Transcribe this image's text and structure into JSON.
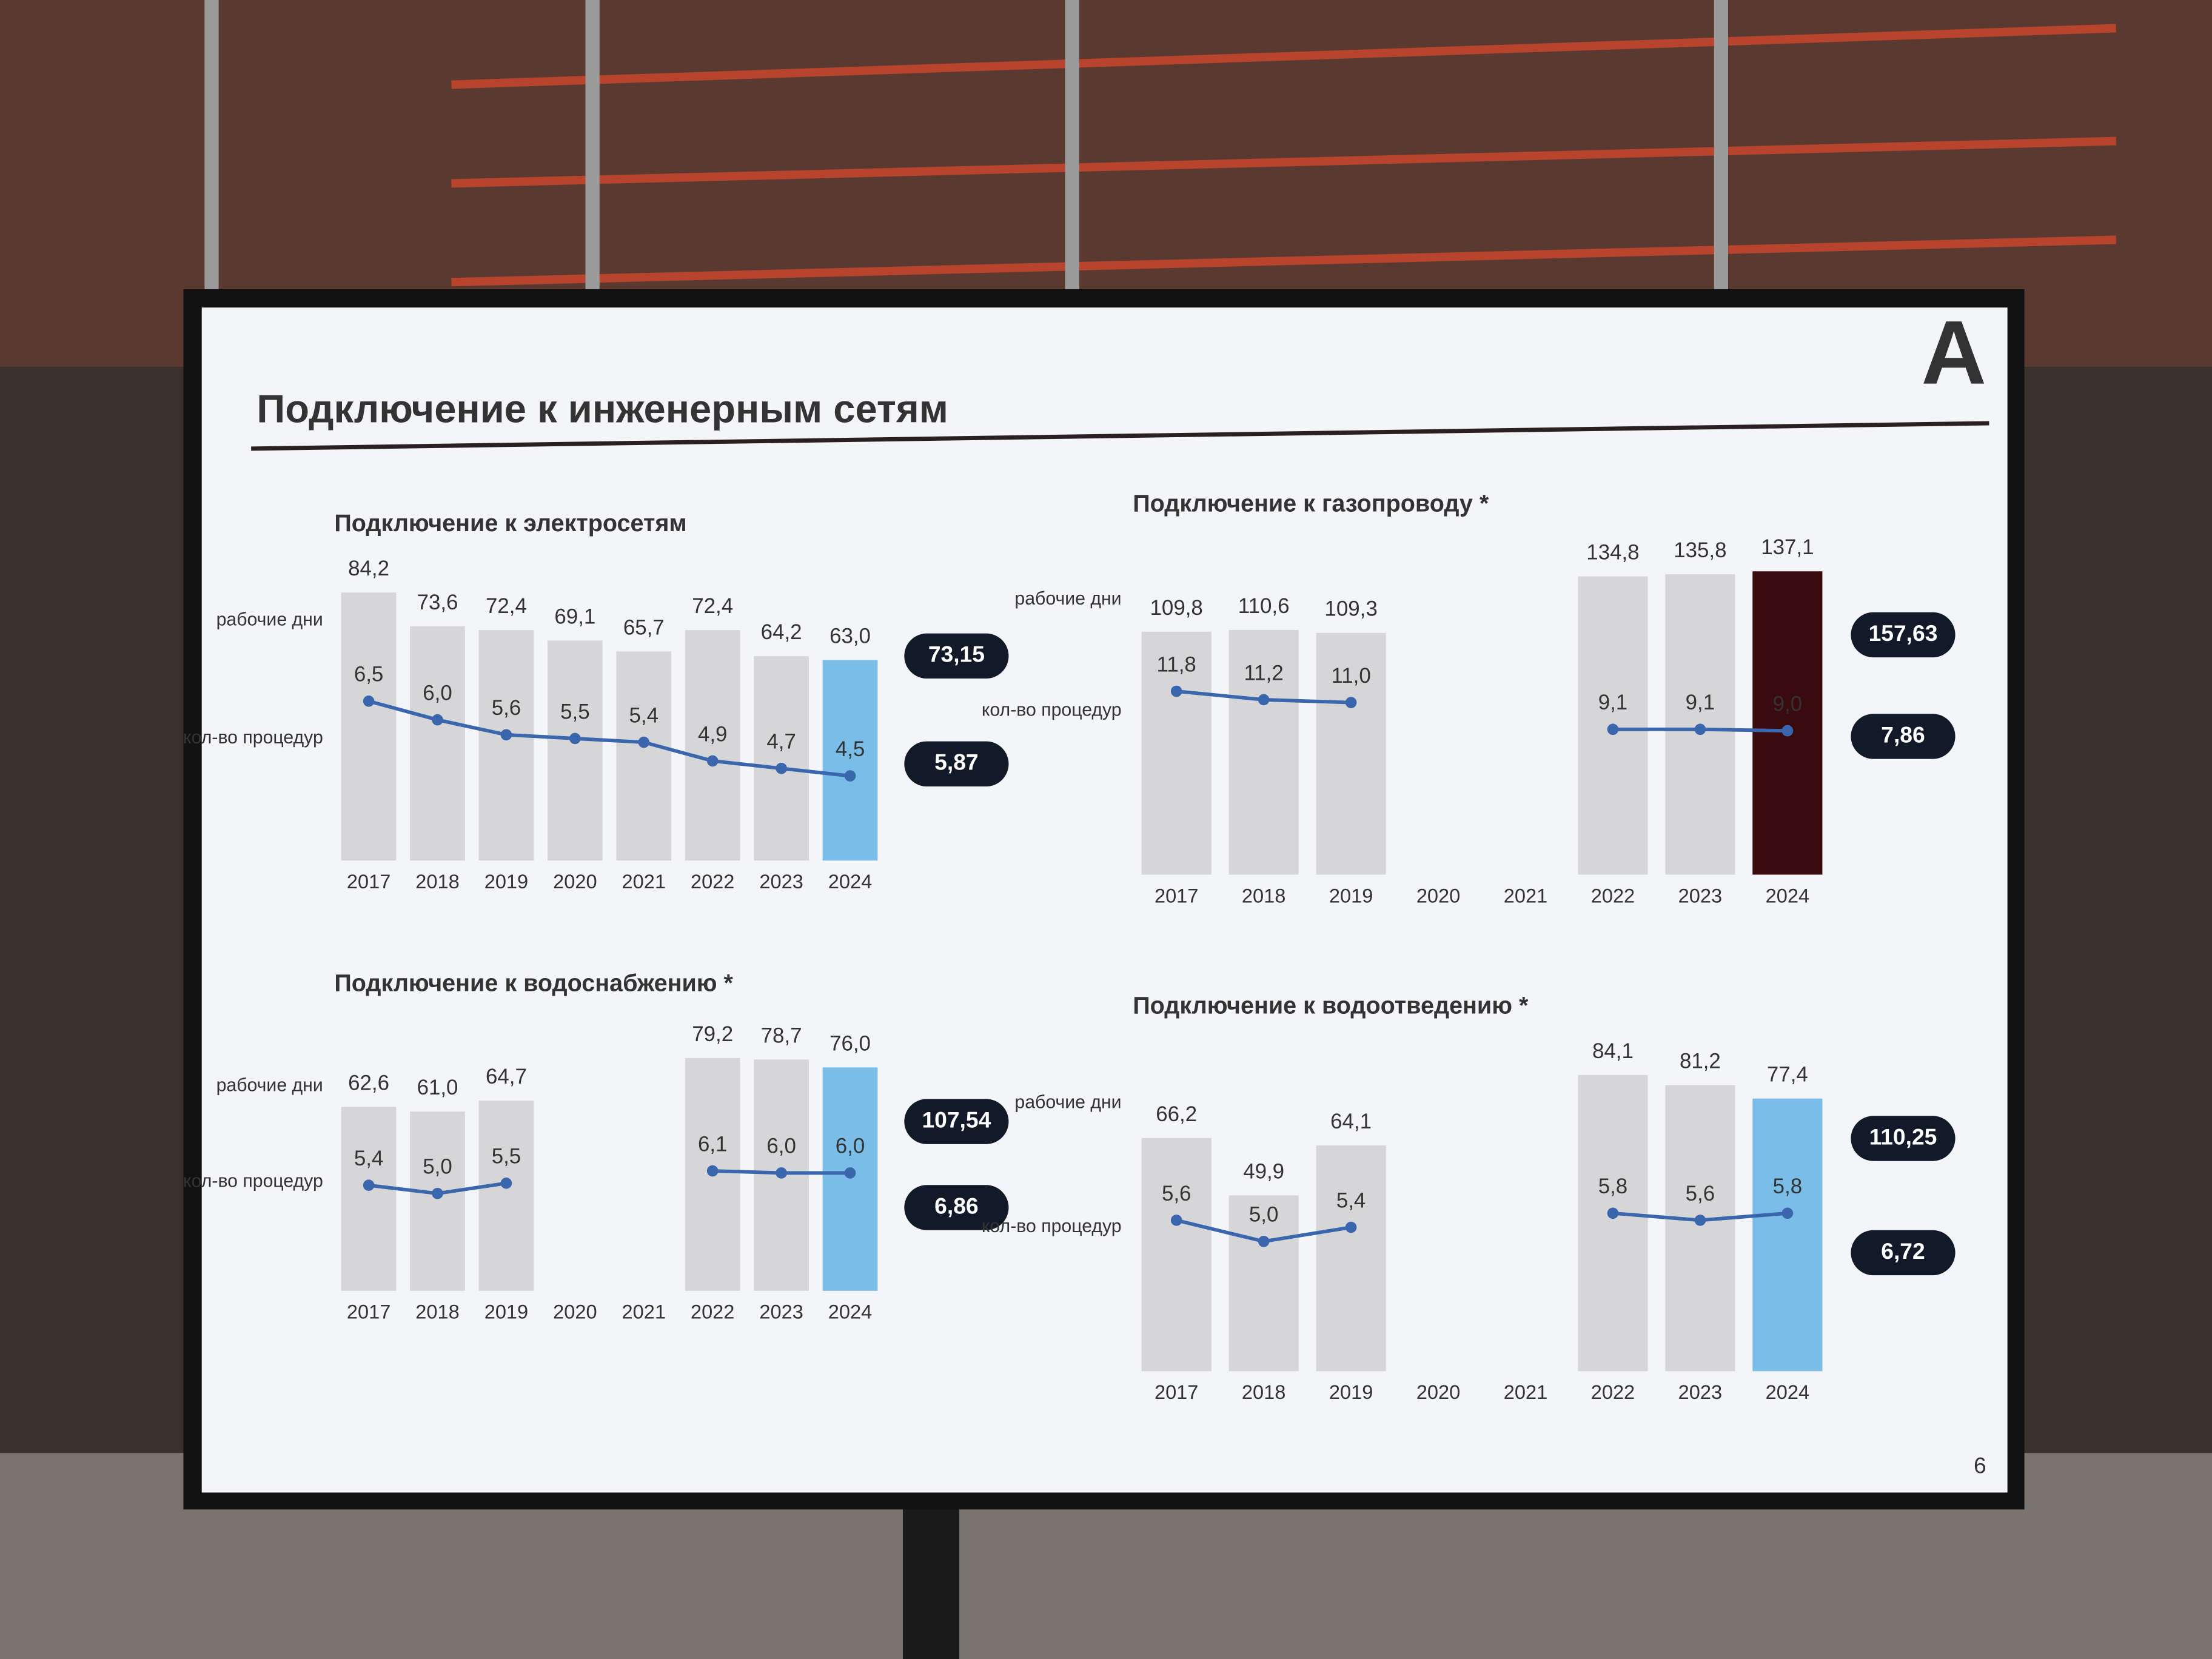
{
  "slide": {
    "title": "Подключение к инженерным сетям",
    "logo": "A",
    "page": 6
  },
  "chart_data": [
    {
      "type": "bar-line",
      "title": "Подключение к электросетям",
      "categories": [
        "2017",
        "2018",
        "2019",
        "2020",
        "2021",
        "2022",
        "2023",
        "2024"
      ],
      "series": [
        {
          "name": "рабочие дни",
          "colors": [
            "#d6d6d8",
            "#d6d6d8",
            "#d6d6d8",
            "#d6d6d8",
            "#d6d6d8",
            "#d6d6d8",
            "#d6d6d8",
            "#79bde8"
          ],
          "values": [
            84.2,
            73.6,
            72.4,
            69.1,
            65.7,
            72.4,
            64.2,
            63.0
          ],
          "value_labels": [
            "84,2",
            "73,6",
            "72,4",
            "69,1",
            "65,7",
            "72,4",
            "64,2",
            "63,0"
          ]
        },
        {
          "name": "кол-во процедур",
          "color": "#3a66ad",
          "values": [
            6.5,
            6.0,
            5.6,
            5.5,
            5.4,
            4.9,
            4.7,
            4.5
          ],
          "value_labels": [
            "6,5",
            "6,0",
            "5,6",
            "5,5",
            "5,4",
            "4,9",
            "4,7",
            "4,5"
          ]
        }
      ],
      "summary_values": [
        73.15,
        5.87
      ],
      "summary_labels": [
        "73,15",
        "5,87"
      ]
    },
    {
      "type": "bar-line",
      "title": "Подключение к газопроводу *",
      "categories": [
        "2017",
        "2018",
        "2019",
        "2020",
        "2021",
        "2022",
        "2023",
        "2024"
      ],
      "series": [
        {
          "name": "рабочие дни",
          "colors": [
            "#d6d6d8",
            "#d6d6d8",
            "#d6d6d8",
            "#d6d6d8",
            "#d6d6d8",
            "#d6d6d8",
            "#d6d6d8",
            "#3a0b0e"
          ],
          "values": [
            109.8,
            110.6,
            109.3,
            null,
            null,
            134.8,
            135.8,
            137.1
          ],
          "value_labels": [
            "109,8",
            "110,6",
            "109,3",
            null,
            null,
            "134,8",
            "135,8",
            "137,1"
          ]
        },
        {
          "name": "кол-во процедур",
          "color": "#3a66ad",
          "values": [
            11.8,
            11.2,
            11.0,
            null,
            null,
            9.1,
            9.1,
            9.0
          ],
          "value_labels": [
            "11,8",
            "11,2",
            "11,0",
            null,
            null,
            "9,1",
            "9,1",
            "9,0"
          ]
        }
      ],
      "summary_values": [
        157.63,
        7.86
      ],
      "summary_labels": [
        "157,63",
        "7,86"
      ]
    },
    {
      "type": "bar-line",
      "title": "Подключение к водоснабжению *",
      "categories": [
        "2017",
        "2018",
        "2019",
        "2020",
        "2021",
        "2022",
        "2023",
        "2024"
      ],
      "series": [
        {
          "name": "рабочие дни",
          "colors": [
            "#d6d6d8",
            "#d6d6d8",
            "#d6d6d8",
            "#d6d6d8",
            "#d6d6d8",
            "#d6d6d8",
            "#d6d6d8",
            "#79bde8"
          ],
          "values": [
            62.6,
            61.0,
            64.7,
            null,
            null,
            79.2,
            78.7,
            76.0
          ],
          "value_labels": [
            "62,6",
            "61,0",
            "64,7",
            null,
            null,
            "79,2",
            "78,7",
            "76,0"
          ]
        },
        {
          "name": "кол-во процедур",
          "color": "#3a66ad",
          "values": [
            5.4,
            5.0,
            5.5,
            null,
            null,
            6.1,
            6.0,
            6.0
          ],
          "value_labels": [
            "5,4",
            "5,0",
            "5,5",
            null,
            null,
            "6,1",
            "6,0",
            "6,0"
          ]
        }
      ],
      "summary_values": [
        107.54,
        6.86
      ],
      "summary_labels": [
        "107,54",
        "6,86"
      ]
    },
    {
      "type": "bar-line",
      "title": "Подключение к водоотведению *",
      "categories": [
        "2017",
        "2018",
        "2019",
        "2020",
        "2021",
        "2022",
        "2023",
        "2024"
      ],
      "series": [
        {
          "name": "рабочие дни",
          "colors": [
            "#d6d6d8",
            "#d6d6d8",
            "#d6d6d8",
            "#d6d6d8",
            "#d6d6d8",
            "#d6d6d8",
            "#d6d6d8",
            "#79bde8"
          ],
          "values": [
            66.2,
            49.9,
            64.1,
            null,
            null,
            84.1,
            81.2,
            77.4
          ],
          "value_labels": [
            "66,2",
            "49,9",
            "64,1",
            null,
            null,
            "84,1",
            "81,2",
            "77,4"
          ]
        },
        {
          "name": "кол-во процедур",
          "color": "#3a66ad",
          "values": [
            5.6,
            5.0,
            5.4,
            null,
            null,
            5.8,
            5.6,
            5.8
          ],
          "value_labels": [
            "5,6",
            "5,0",
            "5,4",
            null,
            null,
            "5,8",
            "5,6",
            "5,8"
          ]
        }
      ],
      "summary_values": [
        110.25,
        6.72
      ],
      "summary_labels": [
        "110,25",
        "6,72"
      ]
    }
  ]
}
